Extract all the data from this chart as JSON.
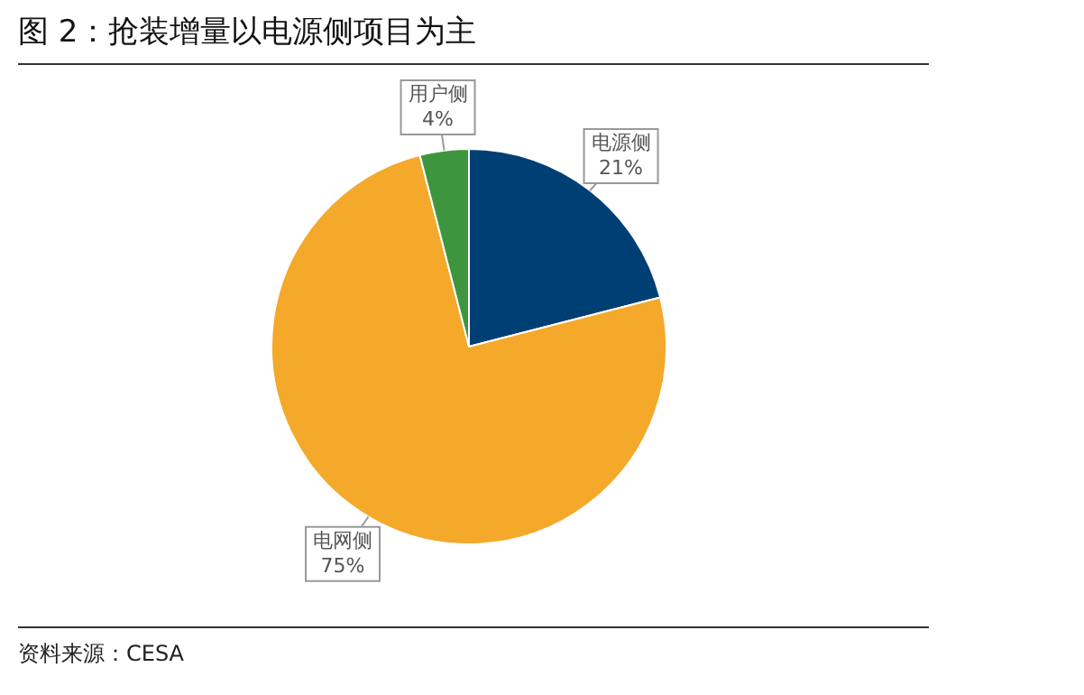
{
  "chart_data": {
    "type": "pie",
    "title": "图 2：抢装增量以电源侧项目为主",
    "categories": [
      "电源侧",
      "电网侧",
      "用户侧"
    ],
    "values": [
      21,
      75,
      4
    ],
    "colors": [
      "#003f74",
      "#f4a92a",
      "#3d963d"
    ],
    "value_labels": [
      "21%",
      "75%",
      "4%"
    ],
    "legend": false,
    "annotations": [
      "资料来源：CESA"
    ]
  }
}
